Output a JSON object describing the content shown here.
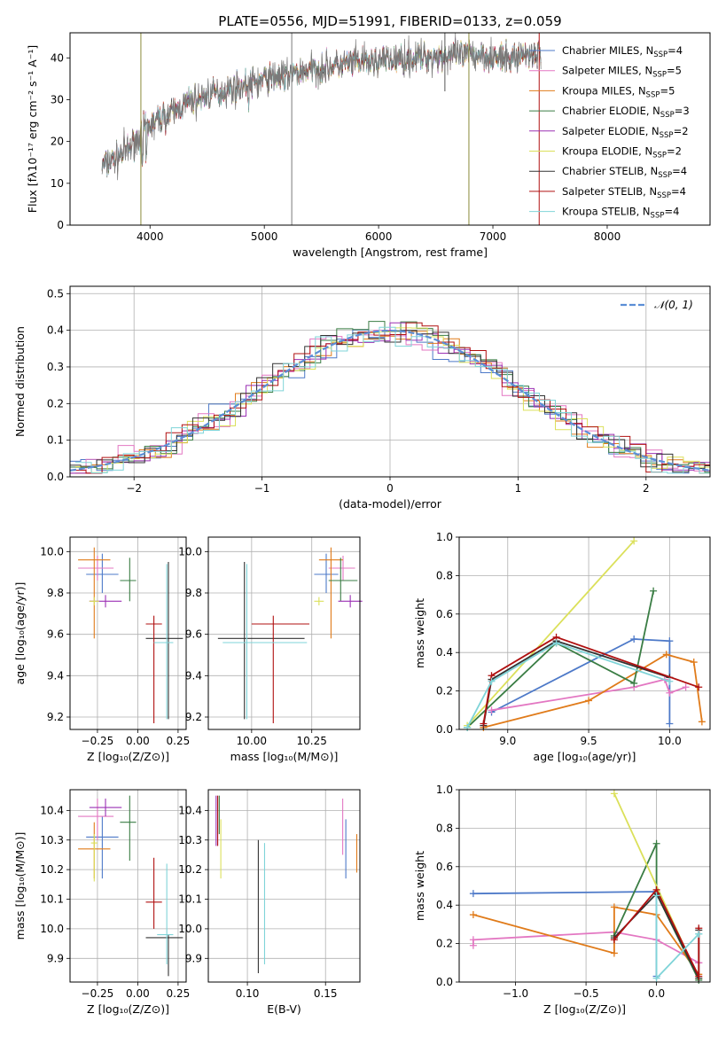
{
  "figure_title": "PLATE=0556, MJD=51991, FIBERID=0133, z=0.059",
  "chart_data": [
    {
      "id": "spectrum",
      "type": "line",
      "xlabel": "wavelength [Angstrom, rest frame]",
      "ylabel": "Flux [fλ10⁻¹⁷ erg cm⁻² s⁻¹ A⁻¹]",
      "xlim": [
        3300,
        8900
      ],
      "ylim": [
        0,
        46
      ],
      "xticks": [
        "4000",
        "5000",
        "6000",
        "7000",
        "8000"
      ],
      "yticks": [
        "0",
        "10",
        "20",
        "30",
        "40"
      ],
      "grid": false,
      "legend_position": "right",
      "continuum": {
        "x": [
          3580,
          3700,
          3800,
          3900,
          3950,
          4050,
          4200,
          4350,
          4500,
          4700,
          4900,
          5100,
          5300,
          5500,
          5700,
          5900,
          6100,
          6300,
          6500,
          6700,
          6900,
          7100,
          7300,
          7420
        ],
        "y": [
          14,
          16,
          18,
          21,
          23,
          25,
          27,
          29.5,
          31,
          32.5,
          34,
          35.5,
          36.5,
          37.5,
          38.5,
          39,
          39.5,
          40,
          40.5,
          40.5,
          41,
          39.5,
          41,
          41
        ]
      },
      "series": [
        {
          "name": "Chabrier MILES, N_SSP=4",
          "color": "#4d79c8"
        },
        {
          "name": "Salpeter MILES, N_SSP=5",
          "color": "#e377c2"
        },
        {
          "name": "Kroupa MILES, N_SSP=5",
          "color": "#e07b1a"
        },
        {
          "name": "Chabrier ELODIE, N_SSP=3",
          "color": "#3a7d44"
        },
        {
          "name": "Salpeter ELODIE, N_SSP=2",
          "color": "#9b30b4"
        },
        {
          "name": "Kroupa ELODIE, N_SSP=2",
          "color": "#dbe05a"
        },
        {
          "name": "Chabrier STELIB, N_SSP=4",
          "color": "#333333"
        },
        {
          "name": "Salpeter STELIB, N_SSP=4",
          "color": "#b01010"
        },
        {
          "name": "Kroupa STELIB, N_SSP=4",
          "color": "#7fd4d8"
        }
      ]
    },
    {
      "id": "residuals",
      "type": "line",
      "xlabel": "(data-model)/error",
      "ylabel": "Normed distribution",
      "xlim": [
        -2.5,
        2.5
      ],
      "ylim": [
        0,
        0.52
      ],
      "xticks": [
        "−2",
        "−1",
        "0",
        "1",
        "2"
      ],
      "yticks": [
        "0.0",
        "0.1",
        "0.2",
        "0.3",
        "0.4",
        "0.5"
      ],
      "grid": true,
      "legend_position": "top-right",
      "gaussian_label": "𝒩(0, 1)",
      "gaussian_color": "#5b8ed6",
      "bin_width": 0.125
    },
    {
      "id": "age-vs-Z",
      "type": "scatter",
      "xlabel": "Z [log₁₀(Z/Z⊙)]",
      "ylabel": "age  [log₁₀(age/yr)]",
      "xlim": [
        -0.42,
        0.3
      ],
      "ylim": [
        9.14,
        10.07
      ],
      "xticks": [
        "−0.25",
        "0.00",
        "0.25"
      ],
      "yticks": [
        "9.2",
        "9.4",
        "9.6",
        "9.8",
        "10.0"
      ],
      "grid": true,
      "points": [
        {
          "color": "#4d79c8",
          "x": -0.22,
          "y": 9.89,
          "xerr": [
            0.1,
            0.1
          ],
          "yerr": [
            0.09,
            0.1
          ]
        },
        {
          "color": "#e377c2",
          "x": -0.25,
          "y": 9.92,
          "xerr": [
            0.12,
            0.1
          ],
          "yerr": [
            0.06,
            0.06
          ]
        },
        {
          "color": "#e07b1a",
          "x": -0.27,
          "y": 9.96,
          "xerr": [
            0.1,
            0.1
          ],
          "yerr": [
            0.38,
            0.06
          ]
        },
        {
          "color": "#3a7d44",
          "x": -0.05,
          "y": 9.86,
          "xerr": [
            0.06,
            0.04
          ],
          "yerr": [
            0.1,
            0.11
          ]
        },
        {
          "color": "#9b30b4",
          "x": -0.2,
          "y": 9.76,
          "xerr": [
            0.1,
            0.1
          ],
          "yerr": [
            0.03,
            0.03
          ]
        },
        {
          "color": "#dbe05a",
          "x": -0.27,
          "y": 9.76,
          "xerr": [
            0.03,
            0.03
          ],
          "yerr": [
            0.02,
            0.02
          ]
        },
        {
          "color": "#333333",
          "x": 0.19,
          "y": 9.58,
          "xerr": [
            0.14,
            0.09
          ],
          "yerr": [
            0.39,
            0.37
          ]
        },
        {
          "color": "#b01010",
          "x": 0.1,
          "y": 9.65,
          "xerr": [
            0.05,
            0.05
          ],
          "yerr": [
            0.48,
            0.04
          ]
        },
        {
          "color": "#7fd4d8",
          "x": 0.18,
          "y": 9.56,
          "xerr": [
            0.08,
            0.04
          ],
          "yerr": [
            0.37,
            0.38
          ]
        }
      ]
    },
    {
      "id": "age-vs-mass",
      "type": "scatter",
      "xlabel": "mass [log₁₀(M/M⊙)]",
      "ylabel": "",
      "xlim": [
        9.82,
        10.45
      ],
      "ylim": [
        9.14,
        10.07
      ],
      "xticks": [
        "10.00",
        "10.25"
      ],
      "yticks": [
        "9.2",
        "9.4",
        "9.6",
        "9.8",
        "10.0"
      ],
      "grid": true,
      "points": [
        {
          "color": "#4d79c8",
          "x": 10.31,
          "y": 9.89,
          "xerr": [
            0.05,
            0.05
          ],
          "yerr": [
            0.09,
            0.1
          ]
        },
        {
          "color": "#e377c2",
          "x": 10.38,
          "y": 9.92,
          "xerr": [
            0.06,
            0.05
          ],
          "yerr": [
            0.06,
            0.06
          ]
        },
        {
          "color": "#e07b1a",
          "x": 10.33,
          "y": 9.96,
          "xerr": [
            0.05,
            0.05
          ],
          "yerr": [
            0.38,
            0.06
          ]
        },
        {
          "color": "#3a7d44",
          "x": 10.37,
          "y": 9.86,
          "xerr": [
            0.05,
            0.07
          ],
          "yerr": [
            0.1,
            0.11
          ]
        },
        {
          "color": "#9b30b4",
          "x": 10.41,
          "y": 9.76,
          "xerr": [
            0.05,
            0.05
          ],
          "yerr": [
            0.03,
            0.03
          ]
        },
        {
          "color": "#dbe05a",
          "x": 10.28,
          "y": 9.76,
          "xerr": [
            0.02,
            0.02
          ],
          "yerr": [
            0.02,
            0.02
          ]
        },
        {
          "color": "#333333",
          "x": 9.97,
          "y": 9.58,
          "xerr": [
            0.11,
            0.25
          ],
          "yerr": [
            0.39,
            0.37
          ]
        },
        {
          "color": "#b01010",
          "x": 10.09,
          "y": 9.65,
          "xerr": [
            0.09,
            0.15
          ],
          "yerr": [
            0.48,
            0.04
          ]
        },
        {
          "color": "#7fd4d8",
          "x": 9.98,
          "y": 9.56,
          "xerr": [
            0.1,
            0.25
          ],
          "yerr": [
            0.37,
            0.38
          ]
        }
      ]
    },
    {
      "id": "weight-vs-age",
      "type": "line",
      "xlabel": "age  [log₁₀(age/yr)]",
      "ylabel": "mass weight",
      "xlim": [
        8.7,
        10.25
      ],
      "ylim": [
        0,
        1
      ],
      "xticks": [
        "9.0",
        "9.5",
        "10.0"
      ],
      "yticks": [
        "0.0",
        "0.2",
        "0.4",
        "0.6",
        "0.8",
        "1.0"
      ],
      "grid": true,
      "series": [
        {
          "color": "#4d79c8",
          "x": [
            8.9,
            9.78,
            10.0,
            10.0
          ],
          "y": [
            0.09,
            0.47,
            0.46,
            0.03
          ]
        },
        {
          "color": "#e377c2",
          "x": [
            8.9,
            9.78,
            9.97,
            10.0,
            10.1
          ],
          "y": [
            0.1,
            0.22,
            0.26,
            0.19,
            0.22
          ]
        },
        {
          "color": "#e07b1a",
          "x": [
            8.85,
            9.5,
            9.98,
            10.15,
            10.2
          ],
          "y": [
            0.01,
            0.15,
            0.39,
            0.35,
            0.04
          ]
        },
        {
          "color": "#3a7d44",
          "x": [
            8.75,
            9.3,
            9.78,
            9.9
          ],
          "y": [
            0.01,
            0.45,
            0.24,
            0.72
          ]
        },
        {
          "color": "#dbe05a",
          "x": [
            8.75,
            9.78
          ],
          "y": [
            0.02,
            0.98
          ]
        },
        {
          "color": "#333333",
          "x": [
            8.85,
            8.9,
            9.3,
            10.0
          ],
          "y": [
            0.02,
            0.26,
            0.46,
            0.27
          ]
        },
        {
          "color": "#b01010",
          "x": [
            8.85,
            8.9,
            9.3,
            10.18
          ],
          "y": [
            0.03,
            0.28,
            0.48,
            0.22
          ]
        },
        {
          "color": "#7fd4d8",
          "x": [
            8.75,
            8.9,
            9.3,
            10.0
          ],
          "y": [
            0.01,
            0.25,
            0.45,
            0.25
          ]
        }
      ]
    },
    {
      "id": "mass-vs-Z",
      "type": "scatter",
      "xlabel": "Z [log₁₀(Z/Z⊙)]",
      "ylabel": "mass [log₁₀(M/M⊙)]",
      "xlim": [
        -0.42,
        0.3
      ],
      "ylim": [
        9.82,
        10.47
      ],
      "xticks": [
        "−0.25",
        "0.00",
        "0.25"
      ],
      "yticks": [
        "9.9",
        "10.0",
        "10.1",
        "10.2",
        "10.3",
        "10.4"
      ],
      "grid": true,
      "points": [
        {
          "color": "#4d79c8",
          "x": -0.22,
          "y": 10.31,
          "xerr": [
            0.1,
            0.1
          ],
          "yerr": [
            0.14,
            0.07
          ]
        },
        {
          "color": "#e377c2",
          "x": -0.25,
          "y": 10.38,
          "xerr": [
            0.12,
            0.1
          ],
          "yerr": [
            0.08,
            0.06
          ]
        },
        {
          "color": "#e07b1a",
          "x": -0.27,
          "y": 10.27,
          "xerr": [
            0.1,
            0.1
          ],
          "yerr": [
            0.1,
            0.09
          ]
        },
        {
          "color": "#3a7d44",
          "x": -0.05,
          "y": 10.36,
          "xerr": [
            0.06,
            0.04
          ],
          "yerr": [
            0.13,
            0.09
          ]
        },
        {
          "color": "#9b30b4",
          "x": -0.2,
          "y": 10.41,
          "xerr": [
            0.1,
            0.1
          ],
          "yerr": [
            0.03,
            0.03
          ]
        },
        {
          "color": "#dbe05a",
          "x": -0.27,
          "y": 10.29,
          "xerr": [
            0.02,
            0.02
          ],
          "yerr": [
            0.13,
            0.03
          ]
        },
        {
          "color": "#333333",
          "x": 0.19,
          "y": 9.97,
          "xerr": [
            0.14,
            0.09
          ],
          "yerr": [
            0.13,
            0.01
          ]
        },
        {
          "color": "#b01010",
          "x": 0.1,
          "y": 10.09,
          "xerr": [
            0.05,
            0.05
          ],
          "yerr": [
            0.09,
            0.15
          ]
        },
        {
          "color": "#7fd4d8",
          "x": 0.18,
          "y": 9.98,
          "xerr": [
            0.06,
            0.04
          ],
          "yerr": [
            0.1,
            0.24
          ]
        }
      ]
    },
    {
      "id": "mass-vs-EBV",
      "type": "scatter",
      "xlabel": "E(B-V)",
      "ylabel": "",
      "xlim": [
        0.075,
        0.172
      ],
      "ylim": [
        9.82,
        10.47
      ],
      "xticks": [
        "0.10",
        "0.15"
      ],
      "yticks": [
        "9.9",
        "10.0",
        "10.1",
        "10.2",
        "10.3",
        "10.4"
      ],
      "grid": true,
      "points": [
        {
          "color": "#4d79c8",
          "x": 0.163,
          "y": 10.27,
          "xerr": [
            0,
            0
          ],
          "yerr": [
            0.1,
            0.1
          ]
        },
        {
          "color": "#e377c2",
          "x": 0.161,
          "y": 10.33,
          "xerr": [
            0,
            0
          ],
          "yerr": [
            0.08,
            0.11
          ]
        },
        {
          "color": "#e07b1a",
          "x": 0.17,
          "y": 10.25,
          "xerr": [
            0,
            0
          ],
          "yerr": [
            0.06,
            0.07
          ]
        },
        {
          "color": "#3a7d44",
          "x": 0.082,
          "y": 10.38,
          "xerr": [
            0,
            0
          ],
          "yerr": [
            0.06,
            0.07
          ]
        },
        {
          "color": "#9b30b4",
          "x": 0.08,
          "y": 10.36,
          "xerr": [
            0,
            0
          ],
          "yerr": [
            0.08,
            0.09
          ]
        },
        {
          "color": "#dbe05a",
          "x": 0.083,
          "y": 10.27,
          "xerr": [
            0,
            0
          ],
          "yerr": [
            0.1,
            0.1
          ]
        },
        {
          "color": "#333333",
          "x": 0.107,
          "y": 10.07,
          "xerr": [
            0,
            0
          ],
          "yerr": [
            0.22,
            0.23
          ]
        },
        {
          "color": "#b01010",
          "x": 0.081,
          "y": 10.36,
          "xerr": [
            0,
            0
          ],
          "yerr": [
            0.08,
            0.09
          ]
        },
        {
          "color": "#7fd4d8",
          "x": 0.111,
          "y": 10.08,
          "xerr": [
            0,
            0
          ],
          "yerr": [
            0.2,
            0.21
          ]
        }
      ]
    },
    {
      "id": "weight-vs-Z",
      "type": "line",
      "xlabel": "Z [log₁₀(Z/Z⊙)]",
      "ylabel": "mass weight",
      "xlim": [
        -1.4,
        0.38
      ],
      "ylim": [
        0,
        1
      ],
      "xticks": [
        "−1.0",
        "−0.5",
        "0.0"
      ],
      "yticks": [
        "0.0",
        "0.2",
        "0.4",
        "0.6",
        "0.8",
        "1.0"
      ],
      "grid": true,
      "series": [
        {
          "color": "#4d79c8",
          "x": [
            -1.3,
            0.0,
            0.0
          ],
          "y": [
            0.46,
            0.47,
            0.03
          ]
        },
        {
          "color": "#e377c2",
          "x": [
            -1.3,
            -1.3,
            -0.3,
            0.0,
            0.3,
            0.3
          ],
          "y": [
            0.19,
            0.22,
            0.26,
            0.22,
            0.1,
            0.1
          ]
        },
        {
          "color": "#e07b1a",
          "x": [
            -1.3,
            -0.3,
            -0.3,
            0.0,
            0.3
          ],
          "y": [
            0.35,
            0.15,
            0.39,
            0.35,
            0.04
          ]
        },
        {
          "color": "#3a7d44",
          "x": [
            -0.3,
            0.0,
            0.0,
            0.3
          ],
          "y": [
            0.24,
            0.72,
            0.46,
            0.01
          ]
        },
        {
          "color": "#dbe05a",
          "x": [
            -0.3,
            0.3
          ],
          "y": [
            0.98,
            0.02
          ]
        },
        {
          "color": "#333333",
          "x": [
            -0.3,
            0.0,
            0.3,
            0.3
          ],
          "y": [
            0.23,
            0.46,
            0.02,
            0.27
          ]
        },
        {
          "color": "#b01010",
          "x": [
            -0.3,
            0.0,
            0.3,
            0.3
          ],
          "y": [
            0.22,
            0.48,
            0.03,
            0.28
          ]
        },
        {
          "color": "#7fd4d8",
          "x": [
            0.0,
            0.0,
            0.3,
            0.3
          ],
          "y": [
            0.45,
            0.02,
            0.25,
            0.25
          ]
        }
      ]
    }
  ]
}
